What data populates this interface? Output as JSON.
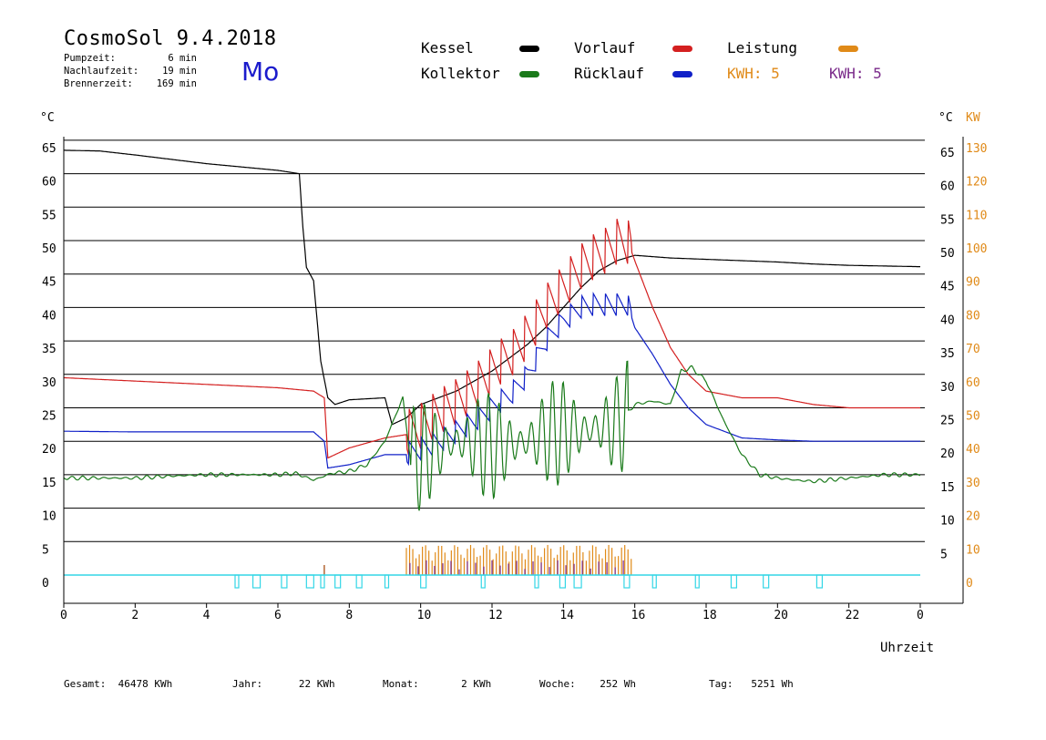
{
  "header": {
    "title": "CosmoSol 9.4.2018",
    "info": [
      {
        "label": "Pumpzeit:",
        "value": "6 min"
      },
      {
        "label": "Nachlaufzeit:",
        "value": "19 min"
      },
      {
        "label": "Brennerzeit:",
        "value": "169 min"
      }
    ],
    "day": "Mo"
  },
  "legend": {
    "kessel": "Kessel",
    "kollektor": "Kollektor",
    "vorlauf": "Vorlauf",
    "ruecklauf": "Rücklauf",
    "leistung": "Leistung",
    "kwh_orange": "KWH: 5",
    "kwh_purple": "KWH: 5"
  },
  "footer": [
    {
      "label": "Gesamt:",
      "value": "46478 KWh"
    },
    {
      "label": "Jahr:",
      "value": "22 KWh"
    },
    {
      "label": "Monat:",
      "value": "2 KWh"
    },
    {
      "label": "Woche:",
      "value": "252 Wh"
    },
    {
      "label": "Tag:",
      "value": "5251 Wh"
    }
  ],
  "chart_data": {
    "type": "line",
    "xlabel": "Uhrzeit",
    "ylabel_left": "°C",
    "ylabel_right": [
      "°C",
      "KW"
    ],
    "xlim": [
      0,
      24
    ],
    "ylim": [
      -5,
      65
    ],
    "x_ticks": [
      "0",
      "2",
      "4",
      "6",
      "8",
      "10",
      "12",
      "14",
      "16",
      "18",
      "20",
      "22",
      "0"
    ],
    "y_ticks_left": [
      0,
      5,
      10,
      15,
      20,
      25,
      30,
      35,
      40,
      45,
      50,
      55,
      60,
      65
    ],
    "y_ticks_right_c": [
      5,
      10,
      15,
      20,
      25,
      30,
      35,
      40,
      45,
      50,
      55,
      60,
      65
    ],
    "y_ticks_right_kw": [
      0,
      10,
      20,
      30,
      40,
      50,
      60,
      70,
      80,
      90,
      100,
      110,
      120,
      130
    ],
    "colors": {
      "kessel": "#000000",
      "kollektor": "#1a7a1a",
      "vorlauf": "#d42020",
      "ruecklauf": "#1020c8",
      "leistung": "#e08a18",
      "kwh": "#7a2a8a",
      "pump": "#33d6e6"
    },
    "series": [
      {
        "name": "Kessel",
        "x": [
          0,
          1,
          2,
          4,
          6,
          6.6,
          6.7,
          6.8,
          7.0,
          7.2,
          7.4,
          7.6,
          8.0,
          9.0,
          9.2,
          9.4,
          9.6,
          10,
          10.5,
          11,
          11.5,
          12,
          12.5,
          13,
          13.5,
          14,
          14.5,
          15,
          15.5,
          16,
          16.5,
          17,
          18,
          19,
          20,
          21,
          22,
          23,
          24
        ],
        "y": [
          63.5,
          63.4,
          62.8,
          61.5,
          60.5,
          60.0,
          52,
          46,
          44,
          32,
          26.5,
          25.5,
          26.2,
          26.5,
          22.5,
          23,
          23.5,
          25.5,
          26.5,
          27.5,
          29,
          30.5,
          32.5,
          34.5,
          37,
          40,
          43,
          45.5,
          47,
          47.8,
          47.6,
          47.4,
          47.2,
          47,
          46.8,
          46.5,
          46.3,
          46.2,
          46.1
        ]
      },
      {
        "name": "Vorlauf",
        "x": [
          0,
          2,
          4,
          6,
          7.0,
          7.3,
          7.4,
          8,
          9,
          9.6,
          10,
          10.5,
          11,
          11.5,
          12,
          12.5,
          13,
          13.5,
          14,
          14.5,
          15,
          15.5,
          15.8,
          16,
          16.5,
          17,
          17.5,
          18,
          19,
          20,
          21,
          22,
          23,
          24
        ],
        "y": [
          29.5,
          29,
          28.5,
          28,
          27.5,
          26.5,
          17.5,
          19,
          20.5,
          21,
          22.5,
          24.5,
          26,
          28,
          30.5,
          33,
          36,
          40,
          43,
          46,
          48,
          50,
          50,
          47,
          40,
          34,
          30,
          27.5,
          26.5,
          26.5,
          25.5,
          25,
          25,
          25
        ]
      },
      {
        "name": "Rücklauf",
        "x": [
          0,
          2,
          4,
          6,
          7.0,
          7.3,
          7.4,
          8,
          9,
          9.6,
          10,
          10.5,
          11,
          11.5,
          12,
          12.5,
          13,
          13.5,
          14,
          14.5,
          15,
          15.5,
          15.8,
          16,
          16.5,
          17,
          17.5,
          18,
          19,
          20,
          21,
          22,
          23,
          24
        ],
        "y": [
          21.5,
          21.4,
          21.4,
          21.4,
          21.4,
          20,
          16,
          16.5,
          18,
          18,
          19,
          20,
          21.5,
          23,
          25,
          27,
          30,
          35,
          38,
          40,
          40.5,
          40.5,
          40.5,
          37,
          33,
          28.5,
          25,
          22.5,
          20.5,
          20.2,
          20,
          20,
          20,
          20
        ]
      },
      {
        "name": "Kollektor",
        "x": [
          0,
          1,
          2,
          3,
          4,
          5,
          6,
          6.5,
          7,
          7.3,
          7.5,
          8,
          8.5,
          9,
          9.5,
          9.7,
          10,
          10.5,
          11,
          11.5,
          12,
          12.5,
          13,
          13.5,
          14,
          14.5,
          15,
          15.5,
          16,
          16.5,
          17,
          17.3,
          17.6,
          18,
          18.5,
          19,
          19.5,
          20,
          20.5,
          21,
          22,
          23,
          24
        ],
        "y": [
          14.5,
          14.5,
          14.5,
          14.8,
          15,
          15,
          15,
          15.2,
          14.2,
          14.8,
          15.2,
          15.5,
          16.5,
          20,
          26.5,
          18,
          17.5,
          19,
          20,
          20,
          19,
          19.5,
          20,
          21,
          21.5,
          21.5,
          22,
          22.5,
          25.5,
          26,
          25.5,
          30.5,
          31,
          29,
          23,
          18,
          15,
          14.5,
          14.2,
          14,
          14.5,
          15,
          15
        ]
      }
    ],
    "leistung_kw_peak": 10,
    "pump_marker_hours": [
      4.8,
      5.3,
      6.1,
      6.8,
      7.2,
      7.6,
      8.2,
      9.0,
      10.0,
      11.7,
      13.2,
      13.9,
      14.3,
      15.7,
      16.5,
      17.7,
      18.7,
      19.6,
      21.1
    ]
  }
}
